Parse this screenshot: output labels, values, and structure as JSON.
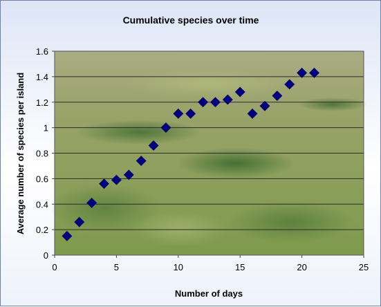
{
  "chart_data": {
    "type": "scatter",
    "title": "Cumulative species over time",
    "xlabel": "Number of days",
    "ylabel": "Average number of species per island",
    "xlim": [
      0,
      25
    ],
    "ylim": [
      0,
      1.6
    ],
    "xticks": [
      "0",
      "5",
      "10",
      "15",
      "20",
      "25"
    ],
    "yticks": [
      "0",
      "0.2",
      "0.4",
      "0.6",
      "0.8",
      "1",
      "1.2",
      "1.4",
      "1.6"
    ],
    "grid": "horizontal",
    "legend": "none",
    "marker": "diamond",
    "marker_color": "#000080",
    "plot_background": "photograph of grassland",
    "series": [
      {
        "x": [
          1,
          2,
          3,
          4,
          5,
          6,
          7,
          8,
          9,
          10,
          11,
          12,
          13,
          14,
          15,
          16,
          17,
          18,
          19,
          20,
          21
        ],
        "y": [
          0.15,
          0.26,
          0.41,
          0.56,
          0.59,
          0.63,
          0.74,
          0.86,
          1.0,
          1.11,
          1.11,
          1.2,
          1.2,
          1.22,
          1.28,
          1.11,
          1.17,
          1.25,
          1.34,
          1.43,
          1.43
        ]
      }
    ]
  }
}
